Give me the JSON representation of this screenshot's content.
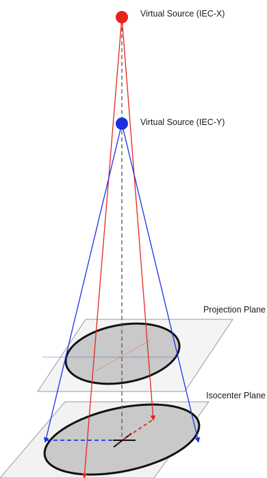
{
  "labels": {
    "source_x": "Virtual Source (IEC-X)",
    "source_y": "Virtual Source (IEC-Y)",
    "projection_plane": "Projection Plane",
    "isocenter_plane": "Isocenter Plane"
  },
  "colors": {
    "source_x": "#e8221c",
    "source_y": "#1c2fe0",
    "plane_fill": "#f2f2f2",
    "plane_stroke": "#9a9a9a",
    "ellipse_fill": "#c9c9c9",
    "ellipse_stroke": "#111111",
    "axis": "#555555",
    "text": "#1a1a1a"
  }
}
